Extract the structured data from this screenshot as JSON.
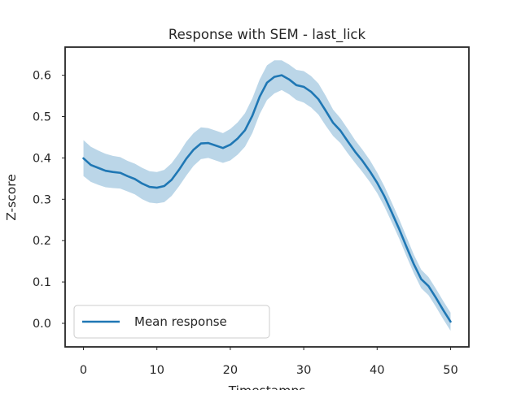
{
  "chart_data": {
    "type": "line",
    "title": "Response with SEM - last_lick",
    "xlabel": "Timestamps",
    "ylabel": "Z-score",
    "xlim": [
      -2.5,
      52.5
    ],
    "ylim": [
      -0.057,
      0.668
    ],
    "xticks": [
      0,
      10,
      20,
      30,
      40,
      50
    ],
    "yticks": [
      0.0,
      0.1,
      0.2,
      0.3,
      0.4,
      0.5,
      0.6
    ],
    "ytick_labels": [
      "0.0",
      "0.1",
      "0.2",
      "0.3",
      "0.4",
      "0.5",
      "0.6"
    ],
    "grid": false,
    "legend_position": "lower-left",
    "x": [
      0,
      1,
      2,
      3,
      4,
      5,
      6,
      7,
      8,
      9,
      10,
      11,
      12,
      13,
      14,
      15,
      16,
      17,
      18,
      19,
      20,
      21,
      22,
      23,
      24,
      25,
      26,
      27,
      28,
      29,
      30,
      31,
      32,
      33,
      34,
      35,
      36,
      37,
      38,
      39,
      40,
      41,
      42,
      43,
      44,
      45,
      46,
      47,
      48,
      49,
      50
    ],
    "series": [
      {
        "name": "Mean response",
        "color": "#1f77b4",
        "band_color": "#1f77b4",
        "band_label": "SEM",
        "values": [
          0.399,
          0.383,
          0.376,
          0.369,
          0.366,
          0.364,
          0.356,
          0.349,
          0.338,
          0.33,
          0.328,
          0.332,
          0.347,
          0.371,
          0.398,
          0.42,
          0.435,
          0.436,
          0.43,
          0.424,
          0.432,
          0.447,
          0.467,
          0.502,
          0.548,
          0.582,
          0.596,
          0.6,
          0.59,
          0.576,
          0.572,
          0.56,
          0.542,
          0.514,
          0.485,
          0.466,
          0.44,
          0.415,
          0.393,
          0.368,
          0.34,
          0.307,
          0.268,
          0.228,
          0.185,
          0.143,
          0.107,
          0.09,
          0.062,
          0.032,
          0.004
        ],
        "upper": [
          0.443,
          0.427,
          0.418,
          0.41,
          0.405,
          0.402,
          0.393,
          0.386,
          0.376,
          0.368,
          0.366,
          0.371,
          0.387,
          0.411,
          0.439,
          0.46,
          0.474,
          0.472,
          0.466,
          0.46,
          0.47,
          0.486,
          0.508,
          0.544,
          0.59,
          0.624,
          0.636,
          0.636,
          0.626,
          0.613,
          0.61,
          0.598,
          0.58,
          0.55,
          0.517,
          0.496,
          0.47,
          0.443,
          0.42,
          0.395,
          0.365,
          0.331,
          0.292,
          0.252,
          0.209,
          0.166,
          0.13,
          0.112,
          0.084,
          0.054,
          0.026
        ],
        "lower": [
          0.356,
          0.342,
          0.335,
          0.329,
          0.327,
          0.326,
          0.319,
          0.312,
          0.3,
          0.292,
          0.29,
          0.293,
          0.308,
          0.331,
          0.357,
          0.381,
          0.397,
          0.4,
          0.394,
          0.388,
          0.394,
          0.408,
          0.427,
          0.46,
          0.506,
          0.54,
          0.556,
          0.564,
          0.554,
          0.54,
          0.534,
          0.522,
          0.505,
          0.478,
          0.453,
          0.436,
          0.411,
          0.388,
          0.366,
          0.342,
          0.315,
          0.282,
          0.244,
          0.205,
          0.162,
          0.121,
          0.085,
          0.068,
          0.04,
          0.01,
          -0.018
        ]
      }
    ]
  }
}
